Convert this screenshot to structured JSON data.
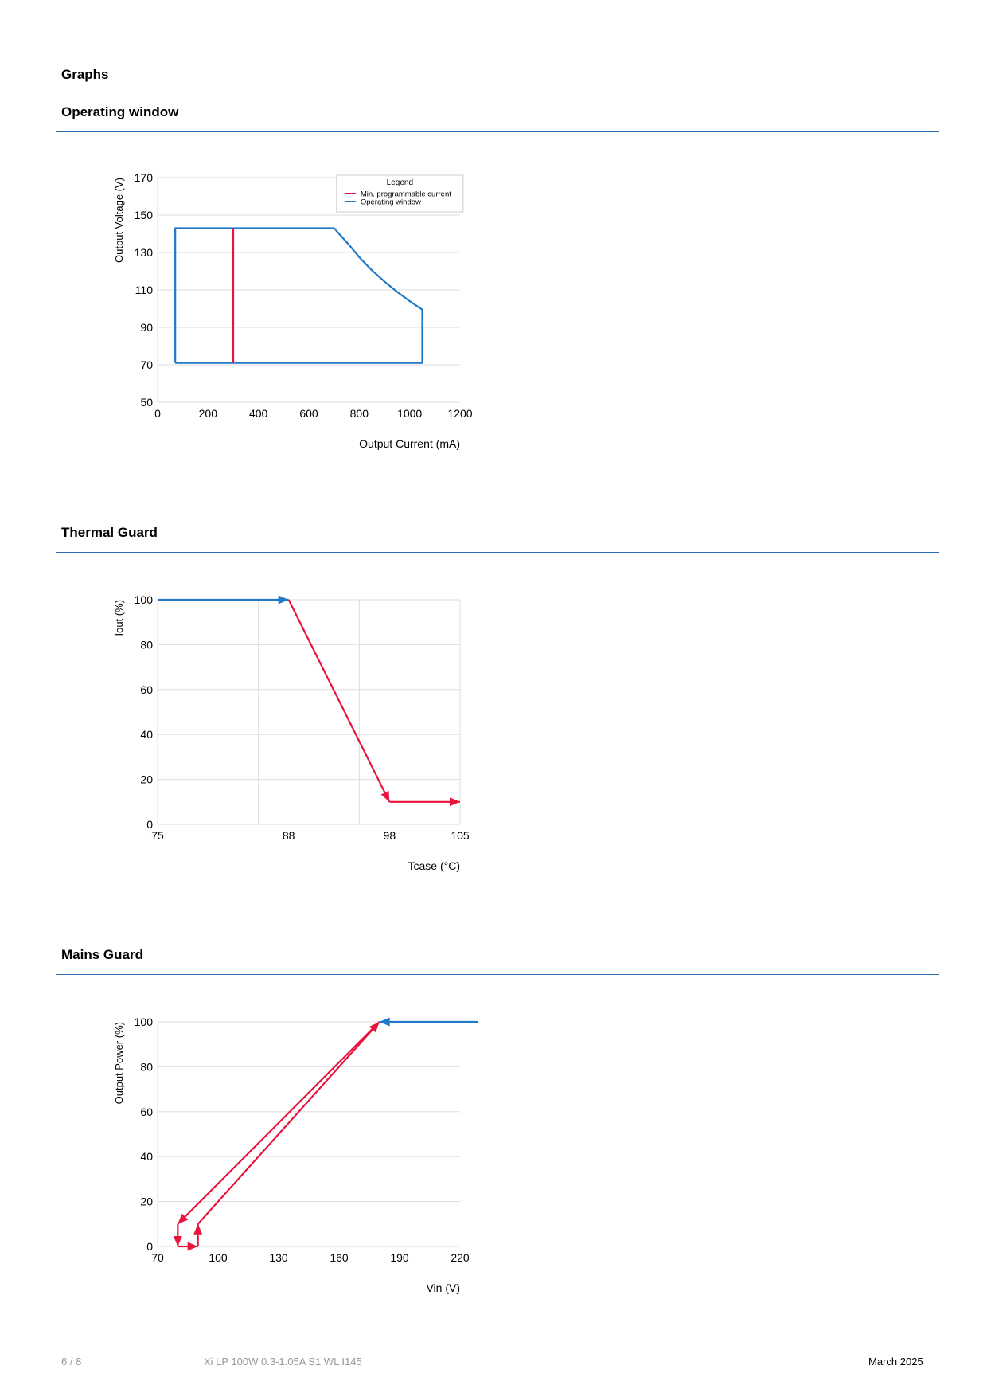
{
  "page": {
    "section_title": "Graphs",
    "footer": {
      "page_number": "6 / 8",
      "product": "Xi LP 100W 0.3-1.05A S1 WL I145",
      "date": "March 2025"
    }
  },
  "colors": {
    "blue": "#1f78c8",
    "red": "#e8143c",
    "rule": "#2e6db4",
    "grid": "#dddddd"
  },
  "chart_data": [
    {
      "id": "operating-window",
      "heading": "Operating window",
      "type": "line",
      "xlabel": "Output Current (mA)",
      "ylabel": "Output Voltage (V)",
      "xlim": [
        0,
        1200
      ],
      "ylim": [
        50,
        170
      ],
      "xticks": [
        "0",
        "200",
        "400",
        "600",
        "800",
        "1000",
        "1200"
      ],
      "yticks": [
        "50",
        "70",
        "90",
        "110",
        "130",
        "150",
        "170"
      ],
      "xtick_values": [
        0,
        200,
        400,
        600,
        800,
        1000,
        1200
      ],
      "ytick_values": [
        50,
        70,
        90,
        110,
        130,
        150,
        170
      ],
      "grid": "horizontal",
      "legend": {
        "title": "Legend",
        "placement": "top-right",
        "entries": [
          "Min. programmable current",
          "Operating window"
        ]
      },
      "series": [
        {
          "name": "Operating window",
          "color": "blue",
          "x": [
            70,
            70,
            700,
            720,
            760,
            800,
            850,
            900,
            950,
            1000,
            1050,
            1050,
            70
          ],
          "y": [
            71,
            143,
            143,
            140,
            134,
            127.5,
            120.5,
            114.5,
            109,
            104,
            99.5,
            71,
            71
          ]
        },
        {
          "name": "Min. programmable current",
          "color": "red",
          "x": [
            300,
            300
          ],
          "y": [
            71,
            143
          ]
        }
      ]
    },
    {
      "id": "thermal-guard",
      "heading": "Thermal Guard",
      "type": "line",
      "xlabel": "Tcase (°C)",
      "ylabel": "Iout (%)",
      "xlim": [
        75,
        105
      ],
      "ylim": [
        0,
        100
      ],
      "xticks": [
        "75",
        "88",
        "98",
        "105"
      ],
      "yticks": [
        "0",
        "20",
        "40",
        "60",
        "80",
        "100"
      ],
      "xtick_values": [
        75,
        88,
        98,
        105
      ],
      "ytick_values": [
        0,
        20,
        40,
        60,
        80,
        100
      ],
      "grid": "both",
      "xgrid_values": [
        85,
        95,
        105
      ],
      "series": [
        {
          "color": "blue",
          "x": [
            75,
            88
          ],
          "y": [
            100,
            100
          ],
          "arrow_end": true
        },
        {
          "color": "red",
          "x": [
            88,
            98
          ],
          "y": [
            100,
            10
          ],
          "arrow_end": true
        },
        {
          "color": "red",
          "x": [
            98,
            105
          ],
          "y": [
            10,
            10
          ],
          "arrow_end": true
        }
      ]
    },
    {
      "id": "mains-guard",
      "heading": "Mains Guard",
      "type": "line",
      "xlabel": "Vin (V)",
      "ylabel": "Output Power (%)",
      "xlim": [
        70,
        220
      ],
      "ylim": [
        0,
        100
      ],
      "xticks": [
        "70",
        "100",
        "130",
        "160",
        "190",
        "220"
      ],
      "yticks": [
        "0",
        "20",
        "40",
        "60",
        "80",
        "100"
      ],
      "xtick_values": [
        70,
        100,
        130,
        160,
        190,
        220
      ],
      "ytick_values": [
        0,
        20,
        40,
        60,
        80,
        100
      ],
      "grid": "horizontal",
      "series": [
        {
          "color": "blue",
          "x": [
            229,
            180
          ],
          "y": [
            100,
            100
          ],
          "arrow_end": true
        },
        {
          "color": "red",
          "x": [
            180,
            80
          ],
          "y": [
            100,
            10
          ],
          "arrow_end": true
        },
        {
          "color": "red",
          "x": [
            80,
            80
          ],
          "y": [
            10,
            0
          ],
          "arrow_end": true
        },
        {
          "color": "red",
          "x": [
            80,
            90
          ],
          "y": [
            0,
            0
          ],
          "arrow_end": true
        },
        {
          "color": "red",
          "x": [
            90,
            90
          ],
          "y": [
            0,
            10
          ],
          "arrow_end": true
        },
        {
          "color": "red",
          "x": [
            90,
            180
          ],
          "y": [
            10,
            100
          ],
          "arrow_end": true
        }
      ]
    }
  ]
}
